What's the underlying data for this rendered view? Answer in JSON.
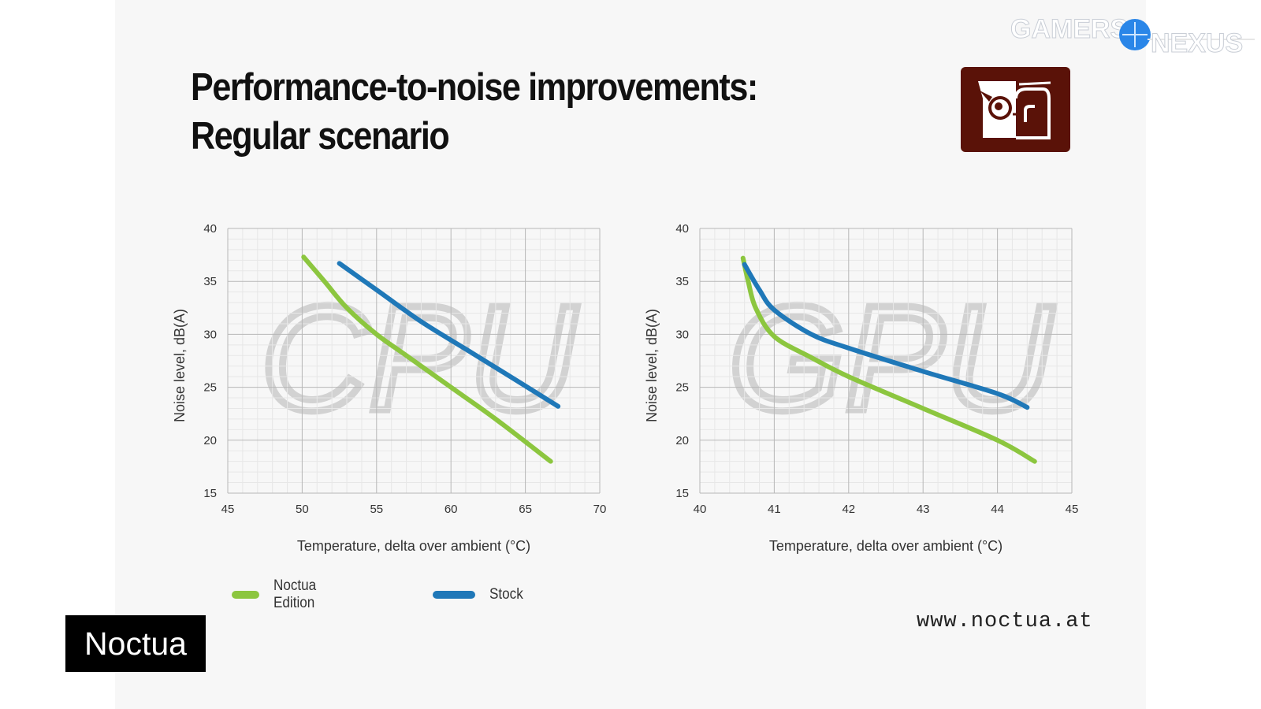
{
  "title": {
    "line1": "Performance-to-noise improvements:",
    "line2": "Regular scenario"
  },
  "watermark": {
    "text_left": "GAMERS",
    "text_right": "NEXUS"
  },
  "website": "www.noctua.at",
  "badge": "Noctua",
  "legend": [
    {
      "label": "Noctua Edition",
      "color": "#8cc63f"
    },
    {
      "label": "Stock",
      "color": "#1f78b8"
    }
  ],
  "chart_data": [
    {
      "type": "line",
      "background_label": "CPU",
      "xlabel": "Temperature, delta over ambient (°C)",
      "ylabel": "Noise level, dB(A)",
      "xlim": [
        45,
        70
      ],
      "ylim": [
        15,
        40
      ],
      "xticks": [
        45,
        50,
        55,
        60,
        65,
        70
      ],
      "yticks": [
        15,
        20,
        25,
        30,
        35,
        40
      ],
      "legend_position": "bottom-left",
      "series": [
        {
          "name": "Noctua Edition",
          "color": "#8cc63f",
          "points": [
            [
              50.1,
              37.3
            ],
            [
              51.5,
              35.0
            ],
            [
              53.0,
              32.5
            ],
            [
              55.0,
              30.0
            ],
            [
              57.0,
              28.0
            ],
            [
              60.0,
              25.0
            ],
            [
              63.0,
              22.0
            ],
            [
              66.7,
              18.0
            ]
          ]
        },
        {
          "name": "Stock",
          "color": "#1f78b8",
          "points": [
            [
              52.5,
              36.7
            ],
            [
              55.0,
              34.2
            ],
            [
              58.0,
              31.2
            ],
            [
              61.0,
              28.6
            ],
            [
              64.0,
              26.0
            ],
            [
              67.2,
              23.2
            ]
          ]
        }
      ]
    },
    {
      "type": "line",
      "background_label": "GPU",
      "xlabel": "Temperature, delta over ambient (°C)",
      "ylabel": "Noise level, dB(A)",
      "xlim": [
        40,
        45
      ],
      "ylim": [
        15,
        40
      ],
      "xticks": [
        40,
        41,
        42,
        43,
        44,
        45
      ],
      "yticks": [
        15,
        20,
        25,
        30,
        35,
        40
      ],
      "legend_position": "bottom-left",
      "series": [
        {
          "name": "Noctua Edition",
          "color": "#8cc63f",
          "points": [
            [
              40.58,
              37.2
            ],
            [
              40.65,
              35.0
            ],
            [
              40.75,
              32.5
            ],
            [
              41.0,
              29.8
            ],
            [
              41.5,
              27.8
            ],
            [
              42.0,
              26.0
            ],
            [
              43.0,
              23.0
            ],
            [
              44.0,
              20.0
            ],
            [
              44.5,
              18.0
            ]
          ]
        },
        {
          "name": "Stock",
          "color": "#1f78b8",
          "points": [
            [
              40.6,
              36.6
            ],
            [
              40.8,
              34.2
            ],
            [
              41.0,
              32.3
            ],
            [
              41.5,
              30.0
            ],
            [
              42.0,
              28.7
            ],
            [
              43.0,
              26.5
            ],
            [
              44.0,
              24.4
            ],
            [
              44.4,
              23.1
            ]
          ]
        }
      ]
    }
  ]
}
